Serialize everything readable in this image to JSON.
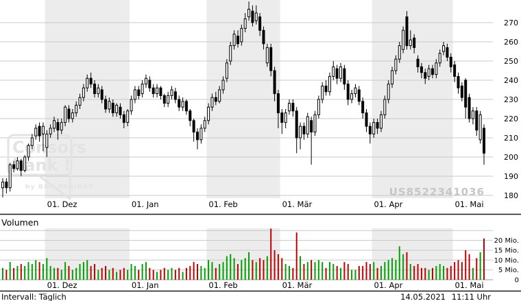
{
  "watermark": {
    "isin": "US8522341036"
  },
  "logo": {
    "line1": "Consors",
    "line2": "bank !",
    "byline": "by BNP PARIBAS"
  },
  "volume_section": {
    "title": "Volumen"
  },
  "footer": {
    "interval": "Intervall: Täglich",
    "date": "14.05.2021",
    "time": "11:11 Uhr"
  },
  "colors": {
    "up_fill": "#ffffff",
    "down_fill": "#000000",
    "outline": "#000000",
    "vol_up": "#00a000",
    "vol_down": "#c00000",
    "band": "#ececec",
    "grid": "#c8c8c8",
    "axis_text": "#000000",
    "separator": "#1a1a1a",
    "watermark": "#c6c6c6",
    "logo": "#e3e3e3"
  },
  "chart_data": {
    "type": "candlestick",
    "title": "",
    "xlabel": "",
    "ylabel": "",
    "grid": true,
    "price_axis": {
      "ticks": [
        270,
        260,
        250,
        240,
        230,
        220,
        210,
        200,
        190,
        180
      ],
      "range": [
        175,
        282
      ]
    },
    "volume_axis": {
      "gridlines_mio": [
        25,
        20,
        15,
        10,
        5,
        0
      ],
      "tick_labels": [
        {
          "v": 20,
          "label": "20 Mio."
        },
        {
          "v": 15,
          "label": "15 Mio."
        },
        {
          "v": 10,
          "label": "10 Mio."
        },
        {
          "v": 5,
          "label": "5 Mio."
        },
        {
          "v": 0,
          "label": "0"
        }
      ]
    },
    "months": [
      {
        "label": "01. Dez",
        "start_index": 12,
        "shaded": true
      },
      {
        "label": "01. Jan",
        "start_index": 35,
        "shaded": false
      },
      {
        "label": "01. Feb",
        "start_index": 56,
        "shaded": true
      },
      {
        "label": "01. Mär",
        "start_index": 76,
        "shaded": false
      },
      {
        "label": "01. Apr",
        "start_index": 101,
        "shaded": true
      },
      {
        "label": "01. Mai",
        "start_index": 123,
        "shaded": false
      }
    ],
    "candles_ohlcv_format": [
      "open",
      "high",
      "low",
      "close",
      "volume_mio"
    ],
    "candles_ohlcv": [
      [
        184,
        189,
        179,
        187,
        6
      ],
      [
        187,
        189,
        181,
        184,
        5
      ],
      [
        184,
        197,
        182,
        196,
        9
      ],
      [
        196,
        198,
        192,
        194,
        6
      ],
      [
        194,
        200,
        193,
        198,
        7
      ],
      [
        198,
        199,
        190,
        193,
        8
      ],
      [
        193,
        201,
        192,
        200,
        7
      ],
      [
        200,
        207,
        198,
        206,
        9
      ],
      [
        206,
        212,
        204,
        210,
        8
      ],
      [
        211,
        217,
        209,
        215,
        10
      ],
      [
        216,
        218,
        208,
        211,
        9
      ],
      [
        212,
        218,
        203,
        216,
        8
      ],
      [
        205,
        214,
        200,
        212,
        11
      ],
      [
        212,
        217,
        210,
        215,
        7
      ],
      [
        215,
        221,
        213,
        219,
        6
      ],
      [
        218,
        220,
        209,
        214,
        6
      ],
      [
        214,
        220,
        212,
        218,
        5
      ],
      [
        218,
        227,
        216,
        226,
        9
      ],
      [
        225,
        227,
        218,
        220,
        7
      ],
      [
        220,
        225,
        218,
        223,
        5
      ],
      [
        223,
        229,
        221,
        227,
        6
      ],
      [
        227,
        233,
        225,
        231,
        8
      ],
      [
        231,
        238,
        229,
        236,
        9
      ],
      [
        236,
        243,
        234,
        241,
        10
      ],
      [
        241,
        244,
        236,
        238,
        7
      ],
      [
        238,
        240,
        231,
        233,
        8
      ],
      [
        233,
        238,
        231,
        236,
        5
      ],
      [
        235,
        237,
        228,
        230,
        6
      ],
      [
        230,
        232,
        223,
        225,
        7
      ],
      [
        225,
        231,
        223,
        229,
        5
      ],
      [
        228,
        230,
        221,
        223,
        6
      ],
      [
        223,
        228,
        221,
        227,
        4
      ],
      [
        226,
        228,
        220,
        222,
        5
      ],
      [
        222,
        224,
        215,
        218,
        6
      ],
      [
        218,
        225,
        216,
        224,
        5
      ],
      [
        224,
        232,
        222,
        230,
        8
      ],
      [
        230,
        237,
        228,
        235,
        7
      ],
      [
        235,
        237,
        230,
        232,
        5
      ],
      [
        233,
        240,
        231,
        238,
        8
      ],
      [
        238,
        243,
        236,
        241,
        9
      ],
      [
        240,
        242,
        234,
        236,
        6
      ],
      [
        236,
        238,
        231,
        233,
        5
      ],
      [
        233,
        238,
        231,
        236,
        4
      ],
      [
        236,
        237,
        230,
        232,
        5
      ],
      [
        232,
        233,
        226,
        228,
        6
      ],
      [
        228,
        234,
        226,
        232,
        5
      ],
      [
        232,
        237,
        230,
        235,
        6
      ],
      [
        234,
        236,
        228,
        230,
        5
      ],
      [
        230,
        232,
        224,
        226,
        6
      ],
      [
        226,
        231,
        224,
        229,
        4
      ],
      [
        229,
        230,
        222,
        224,
        6
      ],
      [
        224,
        225,
        216,
        219,
        7
      ],
      [
        219,
        220,
        208,
        213,
        9
      ],
      [
        213,
        215,
        204,
        209,
        8
      ],
      [
        209,
        217,
        207,
        215,
        7
      ],
      [
        215,
        221,
        213,
        219,
        6
      ],
      [
        219,
        228,
        217,
        226,
        10
      ],
      [
        226,
        233,
        224,
        231,
        9
      ],
      [
        231,
        234,
        227,
        229,
        6
      ],
      [
        229,
        237,
        228,
        235,
        8
      ],
      [
        235,
        242,
        233,
        240,
        9
      ],
      [
        241,
        251,
        239,
        249,
        12
      ],
      [
        250,
        260,
        248,
        258,
        13
      ],
      [
        258,
        266,
        256,
        264,
        11
      ],
      [
        263,
        266,
        257,
        259,
        8
      ],
      [
        260,
        269,
        258,
        267,
        10
      ],
      [
        267,
        275,
        265,
        272,
        11
      ],
      [
        273,
        281,
        271,
        277,
        14
      ],
      [
        276,
        279,
        268,
        270,
        10
      ],
      [
        271,
        279,
        269,
        275,
        9
      ],
      [
        273,
        275,
        263,
        266,
        11
      ],
      [
        266,
        268,
        256,
        259,
        10
      ],
      [
        249,
        259,
        247,
        257,
        12
      ],
      [
        257,
        259,
        242,
        245,
        26
      ],
      [
        245,
        247,
        229,
        233,
        15
      ],
      [
        233,
        235,
        215,
        223,
        13
      ],
      [
        223,
        225,
        212,
        218,
        11
      ],
      [
        218,
        225,
        215,
        223,
        8
      ],
      [
        224,
        230,
        222,
        228,
        7
      ],
      [
        228,
        230,
        221,
        224,
        6
      ],
      [
        224,
        226,
        202,
        210,
        24
      ],
      [
        210,
        218,
        204,
        216,
        12
      ],
      [
        216,
        218,
        209,
        212,
        8
      ],
      [
        212,
        223,
        210,
        221,
        9
      ],
      [
        219,
        221,
        196,
        213,
        10
      ],
      [
        213,
        224,
        211,
        222,
        9
      ],
      [
        222,
        232,
        220,
        230,
        10
      ],
      [
        230,
        239,
        228,
        237,
        9
      ],
      [
        237,
        240,
        232,
        234,
        6
      ],
      [
        234,
        244,
        232,
        242,
        9
      ],
      [
        242,
        250,
        240,
        247,
        8
      ],
      [
        246,
        248,
        238,
        241,
        7
      ],
      [
        241,
        249,
        239,
        247,
        6
      ],
      [
        246,
        248,
        235,
        238,
        9
      ],
      [
        238,
        240,
        227,
        230,
        8
      ],
      [
        230,
        235,
        228,
        233,
        5
      ],
      [
        233,
        238,
        231,
        236,
        5
      ],
      [
        235,
        237,
        227,
        229,
        7
      ],
      [
        229,
        231,
        220,
        223,
        7
      ],
      [
        223,
        225,
        213,
        216,
        9
      ],
      [
        216,
        218,
        207,
        212,
        8
      ],
      [
        212,
        220,
        210,
        218,
        9
      ],
      [
        218,
        220,
        212,
        215,
        6
      ],
      [
        215,
        224,
        213,
        222,
        7
      ],
      [
        222,
        232,
        220,
        230,
        9
      ],
      [
        230,
        240,
        228,
        238,
        10
      ],
      [
        238,
        247,
        236,
        245,
        11
      ],
      [
        245,
        253,
        243,
        251,
        10
      ],
      [
        251,
        260,
        249,
        258,
        17
      ],
      [
        256,
        268,
        254,
        266,
        13
      ],
      [
        273,
        276,
        256,
        258,
        14
      ],
      [
        258,
        266,
        256,
        261,
        8
      ],
      [
        262,
        264,
        254,
        257,
        7
      ],
      [
        251,
        253,
        244,
        247,
        8
      ],
      [
        247,
        249,
        241,
        244,
        6
      ],
      [
        244,
        246,
        238,
        241,
        6
      ],
      [
        242,
        248,
        240,
        246,
        5
      ],
      [
        246,
        248,
        241,
        243,
        6
      ],
      [
        243,
        251,
        241,
        249,
        7
      ],
      [
        249,
        256,
        247,
        254,
        8
      ],
      [
        255,
        260,
        253,
        258,
        7
      ],
      [
        257,
        259,
        250,
        252,
        6
      ],
      [
        252,
        254,
        244,
        247,
        7
      ],
      [
        248,
        250,
        239,
        242,
        9
      ],
      [
        242,
        244,
        233,
        236,
        10
      ],
      [
        237,
        239,
        229,
        231,
        9
      ],
      [
        240,
        241,
        220,
        226,
        15
      ],
      [
        231,
        233,
        218,
        220,
        13
      ],
      [
        220,
        226,
        217,
        224,
        6
      ],
      [
        224,
        226,
        211,
        214,
        11
      ],
      [
        209,
        224,
        207,
        222,
        14
      ],
      [
        215,
        217,
        196,
        202,
        21
      ]
    ]
  }
}
